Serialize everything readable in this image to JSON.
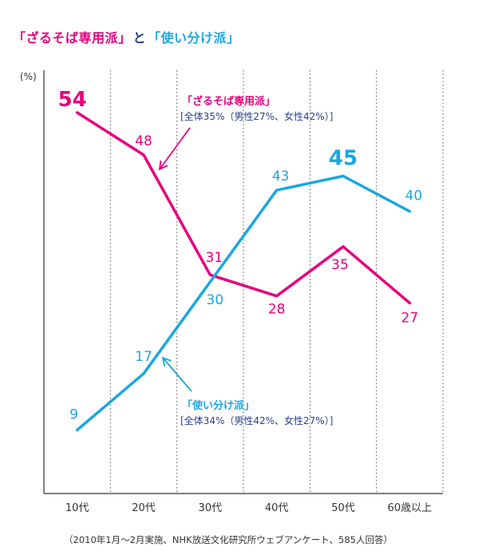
{
  "title": {
    "part1": "「ざるそば専用派」",
    "connector": "と",
    "part2": "「使い分け派」"
  },
  "source_note": "（2010年1月〜2月実施、NHK放送文化研究所ウェブアンケート、585人回答）",
  "colors": {
    "zarusoba": "#e6007e",
    "tsukaiwake": "#1aa7e0",
    "axis": "#333333",
    "grid": "#555555",
    "annotation_text": "#2a3f8f"
  },
  "chart_data": {
    "type": "line",
    "categories": [
      "10代",
      "20代",
      "30代",
      "40代",
      "50代",
      "60歳以上"
    ],
    "ylabel": "(%)",
    "ylim": [
      0,
      60
    ],
    "grid": "vertical-dotted",
    "series": [
      {
        "id": "zarusoba",
        "name": "「ざるそば専用派」",
        "summary": "[全体35%（男性27%、女性42%）]",
        "values": [
          54,
          48,
          31,
          28,
          35,
          27
        ]
      },
      {
        "id": "tsukaiwake",
        "name": "「使い分け派」",
        "summary": "[全体34%（男性42%、女性27%）]",
        "values": [
          9,
          17,
          30,
          43,
          45,
          40
        ]
      }
    ]
  }
}
